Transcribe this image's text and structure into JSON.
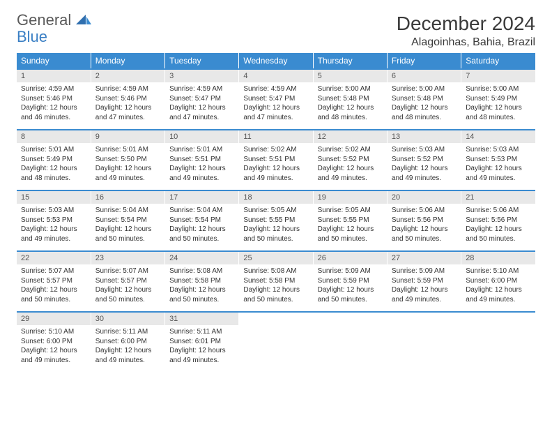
{
  "brand": {
    "word1": "General",
    "word2": "Blue",
    "accent_color": "#3a8bd0",
    "text_color": "#5a5a5a"
  },
  "title": "December 2024",
  "location": "Alagoinhas, Bahia, Brazil",
  "colors": {
    "header_bg": "#3a8bd0",
    "header_fg": "#ffffff",
    "daynum_bg": "#e8e8e8",
    "border": "#3a8bd0"
  },
  "day_headers": [
    "Sunday",
    "Monday",
    "Tuesday",
    "Wednesday",
    "Thursday",
    "Friday",
    "Saturday"
  ],
  "weeks": [
    {
      "nums": [
        "1",
        "2",
        "3",
        "4",
        "5",
        "6",
        "7"
      ],
      "cells": [
        {
          "sunrise": "Sunrise: 4:59 AM",
          "sunset": "Sunset: 5:46 PM",
          "day1": "Daylight: 12 hours",
          "day2": "and 46 minutes."
        },
        {
          "sunrise": "Sunrise: 4:59 AM",
          "sunset": "Sunset: 5:46 PM",
          "day1": "Daylight: 12 hours",
          "day2": "and 47 minutes."
        },
        {
          "sunrise": "Sunrise: 4:59 AM",
          "sunset": "Sunset: 5:47 PM",
          "day1": "Daylight: 12 hours",
          "day2": "and 47 minutes."
        },
        {
          "sunrise": "Sunrise: 4:59 AM",
          "sunset": "Sunset: 5:47 PM",
          "day1": "Daylight: 12 hours",
          "day2": "and 47 minutes."
        },
        {
          "sunrise": "Sunrise: 5:00 AM",
          "sunset": "Sunset: 5:48 PM",
          "day1": "Daylight: 12 hours",
          "day2": "and 48 minutes."
        },
        {
          "sunrise": "Sunrise: 5:00 AM",
          "sunset": "Sunset: 5:48 PM",
          "day1": "Daylight: 12 hours",
          "day2": "and 48 minutes."
        },
        {
          "sunrise": "Sunrise: 5:00 AM",
          "sunset": "Sunset: 5:49 PM",
          "day1": "Daylight: 12 hours",
          "day2": "and 48 minutes."
        }
      ]
    },
    {
      "nums": [
        "8",
        "9",
        "10",
        "11",
        "12",
        "13",
        "14"
      ],
      "cells": [
        {
          "sunrise": "Sunrise: 5:01 AM",
          "sunset": "Sunset: 5:49 PM",
          "day1": "Daylight: 12 hours",
          "day2": "and 48 minutes."
        },
        {
          "sunrise": "Sunrise: 5:01 AM",
          "sunset": "Sunset: 5:50 PM",
          "day1": "Daylight: 12 hours",
          "day2": "and 49 minutes."
        },
        {
          "sunrise": "Sunrise: 5:01 AM",
          "sunset": "Sunset: 5:51 PM",
          "day1": "Daylight: 12 hours",
          "day2": "and 49 minutes."
        },
        {
          "sunrise": "Sunrise: 5:02 AM",
          "sunset": "Sunset: 5:51 PM",
          "day1": "Daylight: 12 hours",
          "day2": "and 49 minutes."
        },
        {
          "sunrise": "Sunrise: 5:02 AM",
          "sunset": "Sunset: 5:52 PM",
          "day1": "Daylight: 12 hours",
          "day2": "and 49 minutes."
        },
        {
          "sunrise": "Sunrise: 5:03 AM",
          "sunset": "Sunset: 5:52 PM",
          "day1": "Daylight: 12 hours",
          "day2": "and 49 minutes."
        },
        {
          "sunrise": "Sunrise: 5:03 AM",
          "sunset": "Sunset: 5:53 PM",
          "day1": "Daylight: 12 hours",
          "day2": "and 49 minutes."
        }
      ]
    },
    {
      "nums": [
        "15",
        "16",
        "17",
        "18",
        "19",
        "20",
        "21"
      ],
      "cells": [
        {
          "sunrise": "Sunrise: 5:03 AM",
          "sunset": "Sunset: 5:53 PM",
          "day1": "Daylight: 12 hours",
          "day2": "and 49 minutes."
        },
        {
          "sunrise": "Sunrise: 5:04 AM",
          "sunset": "Sunset: 5:54 PM",
          "day1": "Daylight: 12 hours",
          "day2": "and 50 minutes."
        },
        {
          "sunrise": "Sunrise: 5:04 AM",
          "sunset": "Sunset: 5:54 PM",
          "day1": "Daylight: 12 hours",
          "day2": "and 50 minutes."
        },
        {
          "sunrise": "Sunrise: 5:05 AM",
          "sunset": "Sunset: 5:55 PM",
          "day1": "Daylight: 12 hours",
          "day2": "and 50 minutes."
        },
        {
          "sunrise": "Sunrise: 5:05 AM",
          "sunset": "Sunset: 5:55 PM",
          "day1": "Daylight: 12 hours",
          "day2": "and 50 minutes."
        },
        {
          "sunrise": "Sunrise: 5:06 AM",
          "sunset": "Sunset: 5:56 PM",
          "day1": "Daylight: 12 hours",
          "day2": "and 50 minutes."
        },
        {
          "sunrise": "Sunrise: 5:06 AM",
          "sunset": "Sunset: 5:56 PM",
          "day1": "Daylight: 12 hours",
          "day2": "and 50 minutes."
        }
      ]
    },
    {
      "nums": [
        "22",
        "23",
        "24",
        "25",
        "26",
        "27",
        "28"
      ],
      "cells": [
        {
          "sunrise": "Sunrise: 5:07 AM",
          "sunset": "Sunset: 5:57 PM",
          "day1": "Daylight: 12 hours",
          "day2": "and 50 minutes."
        },
        {
          "sunrise": "Sunrise: 5:07 AM",
          "sunset": "Sunset: 5:57 PM",
          "day1": "Daylight: 12 hours",
          "day2": "and 50 minutes."
        },
        {
          "sunrise": "Sunrise: 5:08 AM",
          "sunset": "Sunset: 5:58 PM",
          "day1": "Daylight: 12 hours",
          "day2": "and 50 minutes."
        },
        {
          "sunrise": "Sunrise: 5:08 AM",
          "sunset": "Sunset: 5:58 PM",
          "day1": "Daylight: 12 hours",
          "day2": "and 50 minutes."
        },
        {
          "sunrise": "Sunrise: 5:09 AM",
          "sunset": "Sunset: 5:59 PM",
          "day1": "Daylight: 12 hours",
          "day2": "and 50 minutes."
        },
        {
          "sunrise": "Sunrise: 5:09 AM",
          "sunset": "Sunset: 5:59 PM",
          "day1": "Daylight: 12 hours",
          "day2": "and 49 minutes."
        },
        {
          "sunrise": "Sunrise: 5:10 AM",
          "sunset": "Sunset: 6:00 PM",
          "day1": "Daylight: 12 hours",
          "day2": "and 49 minutes."
        }
      ]
    },
    {
      "nums": [
        "29",
        "30",
        "31",
        "",
        "",
        "",
        ""
      ],
      "cells": [
        {
          "sunrise": "Sunrise: 5:10 AM",
          "sunset": "Sunset: 6:00 PM",
          "day1": "Daylight: 12 hours",
          "day2": "and 49 minutes."
        },
        {
          "sunrise": "Sunrise: 5:11 AM",
          "sunset": "Sunset: 6:00 PM",
          "day1": "Daylight: 12 hours",
          "day2": "and 49 minutes."
        },
        {
          "sunrise": "Sunrise: 5:11 AM",
          "sunset": "Sunset: 6:01 PM",
          "day1": "Daylight: 12 hours",
          "day2": "and 49 minutes."
        },
        null,
        null,
        null,
        null
      ]
    }
  ]
}
